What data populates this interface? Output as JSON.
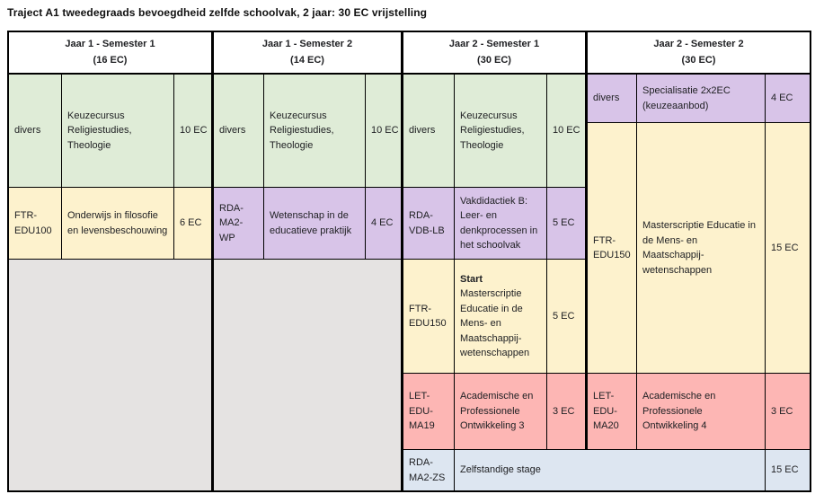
{
  "title": "Traject A1 tweedegraads bevoegdheid zelfde schoolvak, 2 jaar: 30 EC vrijstelling",
  "colors": {
    "elective_green": "#dfecd7",
    "course_yellow": "#fdf2cd",
    "course_purple": "#d8c4e8",
    "course_pink": "#fdb6b4",
    "stage_blue": "#dde6f1",
    "empty_gray": "#e5e3e2",
    "border": "#000000"
  },
  "columns": [
    {
      "title": "Jaar 1 - Semester 1",
      "ec": "(16 EC)"
    },
    {
      "title": "Jaar 1 - Semester 2",
      "ec": "(14 EC)"
    },
    {
      "title": "Jaar 2 - Semester 1",
      "ec": "(30 EC)"
    },
    {
      "title": "Jaar 2 - Semester 2",
      "ec": "(30 EC)"
    }
  ],
  "courses": {
    "j1s1_keuzecursus": {
      "code": "divers",
      "name": "Keuzecursus Religiestudies, Theologie",
      "ec": "10 EC"
    },
    "j1s1_filosofie": {
      "code": "FTR-EDU100",
      "name": "Onderwijs in filosofie en levensbeschouwing",
      "ec": "6 EC"
    },
    "j1s2_keuzecursus": {
      "code": "divers",
      "name": "Keuzecursus Religiestudies, Theologie",
      "ec": "10 EC"
    },
    "j1s2_wetenschap": {
      "code": "RDA-MA2-WP",
      "name": "Wetenschap in de educatieve praktijk",
      "ec": "4 EC"
    },
    "j2s1_keuzecursus": {
      "code": "divers",
      "name": "Keuzecursus Religiestudies, Theologie",
      "ec": "10 EC"
    },
    "j2s1_vakdidactiek": {
      "code": "RDA-VDB-LB",
      "name": "Vakdidactiek B: Leer- en denkprocessen in het schoolvak",
      "ec": "5 EC"
    },
    "j2s1_scriptie_start": {
      "code": "FTR-EDU150",
      "highlight": "Start",
      "name": "Masterscriptie Educatie in de Mens- en Maatschappij-wetenschappen",
      "ec": "5 EC"
    },
    "j2s1_apo3": {
      "code": "LET-EDU-MA19",
      "name": "Academische en Professionele Ontwikkeling 3",
      "ec": "3 EC"
    },
    "j2s2_specialisatie": {
      "code": "divers",
      "name": "Specialisatie 2x2EC (keuzeaanbod)",
      "ec": "4 EC"
    },
    "j2s2_scriptie": {
      "code": "FTR-EDU150",
      "name": "Masterscriptie Educatie in de Mens- en Maatschappij-wetenschappen",
      "ec": "15 EC"
    },
    "j2s2_apo4": {
      "code": "LET-EDU-MA20",
      "name": "Academische en Professionele Ontwikkeling 4",
      "ec": "3 EC"
    },
    "stage": {
      "code": "RDA-MA2-ZS",
      "name": "Zelfstandige stage",
      "ec": "15 EC"
    }
  }
}
